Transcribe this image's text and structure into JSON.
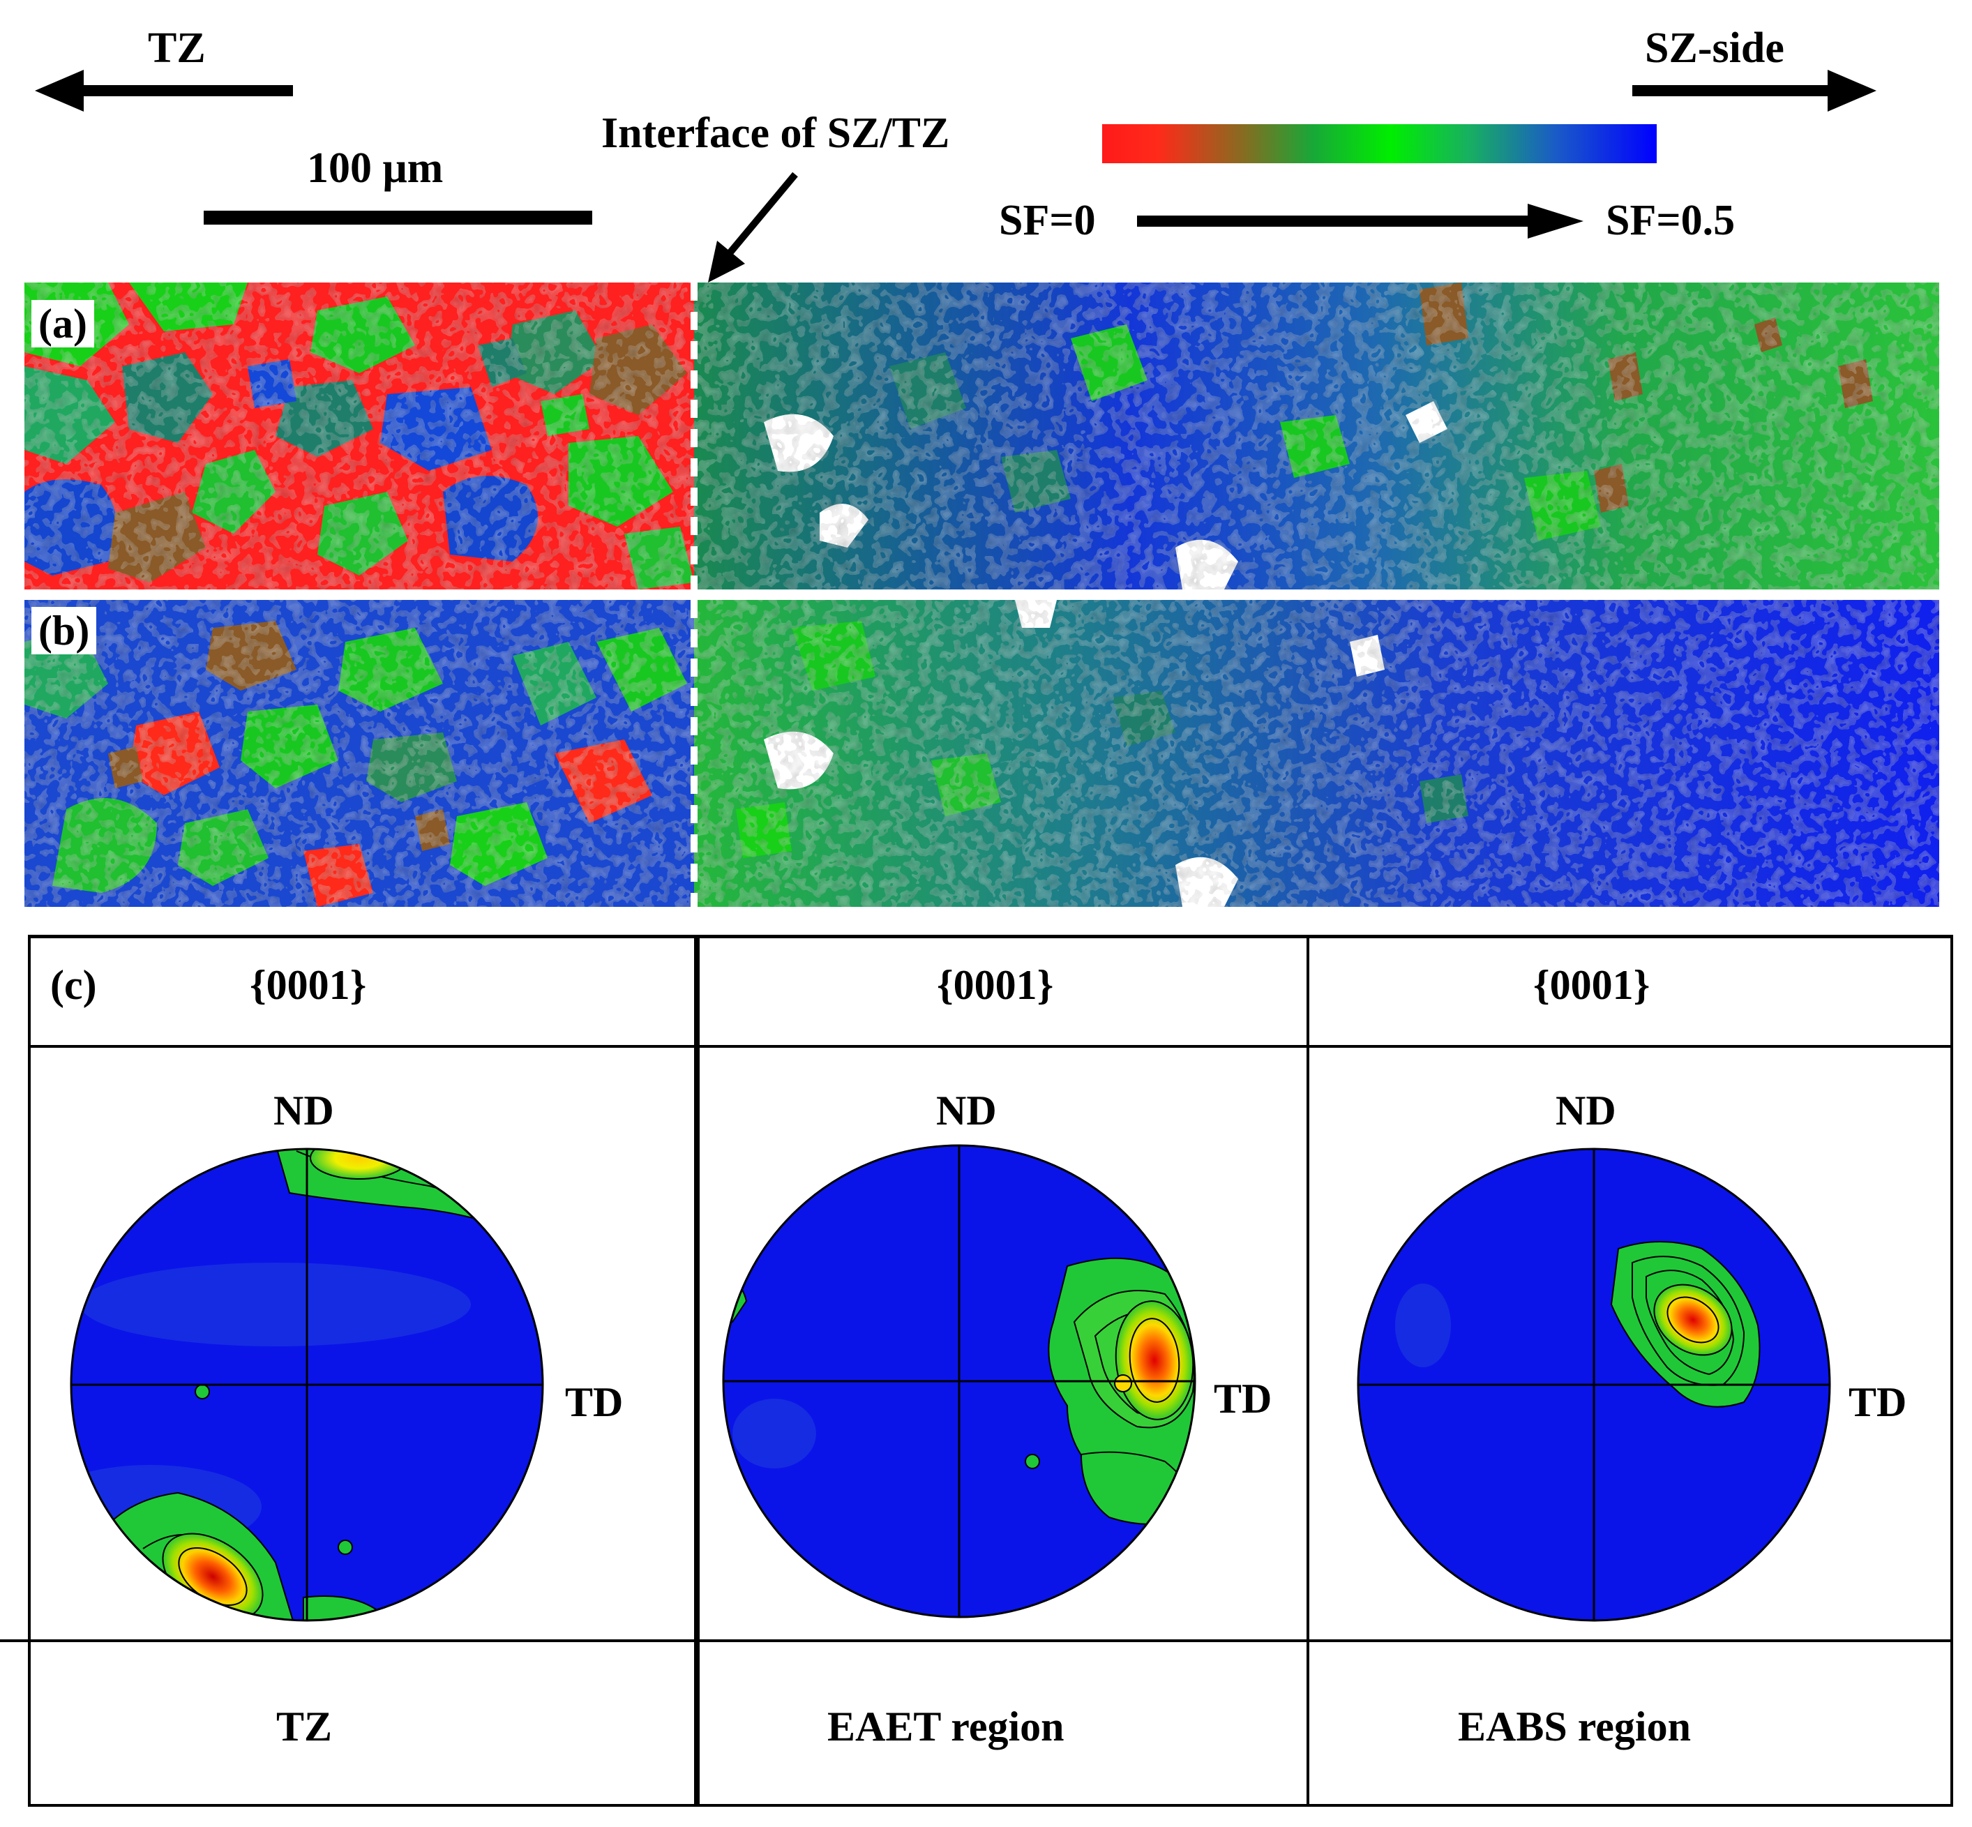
{
  "header": {
    "tz_arrow_label": "TZ",
    "sz_arrow_label": "SZ-side",
    "scale_bar_label": "100 μm",
    "interface_label": "Interface of SZ/TZ",
    "sf_min_label": "SF=0",
    "sf_max_label": "SF=0.5",
    "colorbar_colors": [
      "#ff1a1a",
      "#8a6a20",
      "#00ee00",
      "#1a5ac8",
      "#0000ff"
    ]
  },
  "maps": {
    "a": {
      "label": "(a)"
    },
    "b": {
      "label": "(b)"
    }
  },
  "pole_figures": {
    "panel_label": "(c)",
    "columns": [
      {
        "plane": "{0001}",
        "nd": "ND",
        "td": "TD",
        "region": "TZ"
      },
      {
        "plane": "{0001}",
        "nd": "ND",
        "td": "TD",
        "region": "EAET region"
      },
      {
        "plane": "{0001}",
        "nd": "ND",
        "td": "TD",
        "region": "EABS region"
      }
    ],
    "intensity_colors": [
      "#0a14e8",
      "#18c818",
      "#f0f000",
      "#ff8000",
      "#e00000"
    ]
  }
}
